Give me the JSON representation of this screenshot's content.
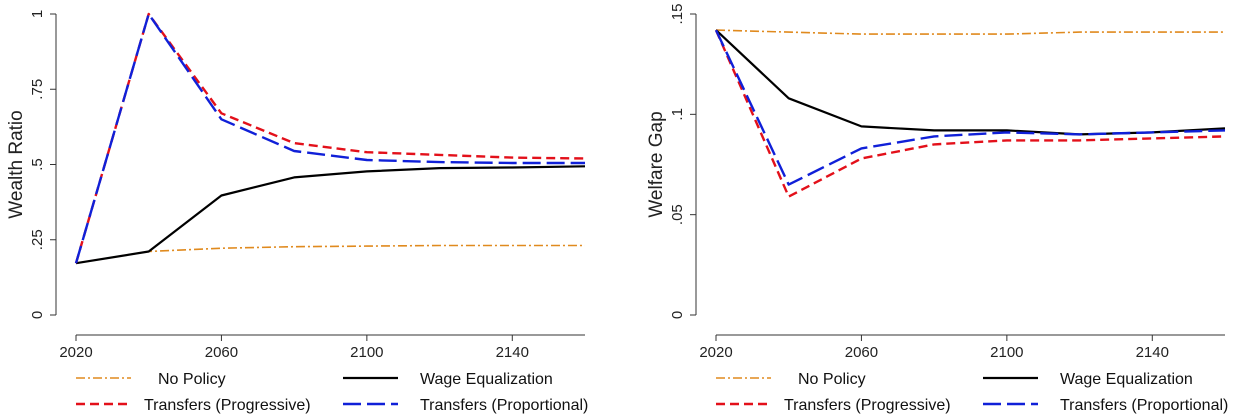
{
  "styles": {
    "No Policy": {
      "color": "#e08a1e",
      "dash": "9,3,2,3",
      "width": 1.6
    },
    "Wage Equalization": {
      "color": "#000000",
      "dash": "",
      "width": 2.2
    },
    "Transfers (Progressive)": {
      "color": "#e3101a",
      "dash": "9,5",
      "width": 2.4
    },
    "Transfers (Proportional)": {
      "color": "#1020d8",
      "dash": "18,6",
      "width": 2.4
    }
  },
  "chart_data": [
    {
      "type": "line",
      "title": "",
      "xlabel": "",
      "ylabel": "Wealth Ratio",
      "xlim": [
        2020,
        2160
      ],
      "ylim": [
        0,
        1
      ],
      "x_ticks": [
        "2020",
        "2060",
        "2100",
        "2140"
      ],
      "y_ticks": [
        "0",
        ".25",
        ".5",
        ".75",
        "1"
      ],
      "grid": false,
      "legend": {
        "position": "bottom",
        "columns": 2
      },
      "x": [
        2020,
        2040,
        2060,
        2080,
        2100,
        2120,
        2140,
        2160
      ],
      "series": [
        {
          "name": "No Policy",
          "values": [
            0.172,
            0.211,
            0.222,
            0.227,
            0.229,
            0.231,
            0.231,
            0.231
          ]
        },
        {
          "name": "Wage Equalization",
          "values": [
            0.172,
            0.211,
            0.397,
            0.457,
            0.477,
            0.488,
            0.49,
            0.494
          ]
        },
        {
          "name": "Transfers (Progressive)",
          "values": [
            0.172,
            1.0,
            0.67,
            0.571,
            0.541,
            0.532,
            0.523,
            0.52
          ]
        },
        {
          "name": "Transfers (Proportional)",
          "values": [
            0.172,
            1.0,
            0.65,
            0.545,
            0.515,
            0.508,
            0.505,
            0.505
          ]
        }
      ]
    },
    {
      "type": "line",
      "title": "",
      "xlabel": "",
      "ylabel": "Welfare Gap",
      "xlim": [
        2020,
        2160
      ],
      "ylim": [
        0,
        0.15
      ],
      "x_ticks": [
        "2020",
        "2060",
        "2100",
        "2140"
      ],
      "y_ticks": [
        "0",
        ".05",
        ".1",
        ".15"
      ],
      "grid": false,
      "legend": {
        "position": "bottom",
        "columns": 2
      },
      "x": [
        2020,
        2040,
        2060,
        2080,
        2100,
        2120,
        2140,
        2160
      ],
      "series": [
        {
          "name": "No Policy",
          "values": [
            0.142,
            0.141,
            0.14,
            0.14,
            0.14,
            0.141,
            0.141,
            0.141
          ]
        },
        {
          "name": "Wage Equalization",
          "values": [
            0.142,
            0.108,
            0.094,
            0.092,
            0.092,
            0.09,
            0.091,
            0.093
          ]
        },
        {
          "name": "Transfers (Progressive)",
          "values": [
            0.142,
            0.059,
            0.078,
            0.085,
            0.087,
            0.087,
            0.088,
            0.089
          ]
        },
        {
          "name": "Transfers (Proportional)",
          "values": [
            0.142,
            0.065,
            0.083,
            0.089,
            0.091,
            0.09,
            0.091,
            0.092
          ]
        }
      ]
    }
  ]
}
